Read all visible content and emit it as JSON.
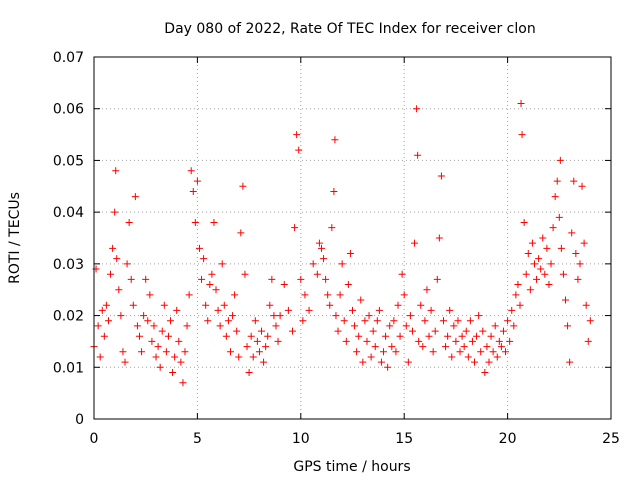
{
  "chart_data": {
    "type": "scatter",
    "title": "Day 080 of 2022, Rate Of TEC Index for receiver clon",
    "xlabel": "GPS time / hours",
    "ylabel": "ROTI / TECUs",
    "xlim": [
      0,
      25
    ],
    "ylim": [
      0,
      0.07
    ],
    "x_ticks": [
      0,
      5,
      10,
      15,
      20,
      25
    ],
    "x_tick_labels": [
      "0",
      "5",
      "10",
      "15",
      "20",
      "25"
    ],
    "y_ticks": [
      0,
      0.01,
      0.02,
      0.03,
      0.04,
      0.05,
      0.06,
      0.07
    ],
    "y_tick_labels": [
      "0",
      "0.01",
      "0.02",
      "0.03",
      "0.04",
      "0.05",
      "0.06",
      "0.07"
    ],
    "grid": true,
    "marker": "+",
    "color": "#ff0000",
    "series": [
      {
        "points": [
          [
            0.0,
            0.014
          ],
          [
            0.1,
            0.029
          ],
          [
            0.2,
            0.018
          ],
          [
            0.3,
            0.012
          ],
          [
            0.4,
            0.021
          ],
          [
            0.5,
            0.016
          ],
          [
            0.6,
            0.022
          ],
          [
            0.7,
            0.019
          ],
          [
            0.8,
            0.028
          ],
          [
            0.9,
            0.033
          ],
          [
            1.0,
            0.04
          ],
          [
            1.05,
            0.048
          ],
          [
            1.1,
            0.031
          ],
          [
            1.2,
            0.025
          ],
          [
            1.3,
            0.02
          ],
          [
            1.4,
            0.013
          ],
          [
            1.5,
            0.011
          ],
          [
            1.6,
            0.03
          ],
          [
            1.7,
            0.038
          ],
          [
            1.8,
            0.027
          ],
          [
            1.9,
            0.022
          ],
          [
            2.0,
            0.043
          ],
          [
            2.1,
            0.018
          ],
          [
            2.2,
            0.016
          ],
          [
            2.3,
            0.013
          ],
          [
            2.4,
            0.02
          ],
          [
            2.5,
            0.027
          ],
          [
            2.6,
            0.019
          ],
          [
            2.7,
            0.024
          ],
          [
            2.8,
            0.015
          ],
          [
            2.9,
            0.018
          ],
          [
            3.0,
            0.012
          ],
          [
            3.1,
            0.014
          ],
          [
            3.2,
            0.01
          ],
          [
            3.3,
            0.017
          ],
          [
            3.4,
            0.022
          ],
          [
            3.5,
            0.013
          ],
          [
            3.6,
            0.016
          ],
          [
            3.7,
            0.019
          ],
          [
            3.8,
            0.009
          ],
          [
            3.9,
            0.012
          ],
          [
            4.0,
            0.021
          ],
          [
            4.1,
            0.015
          ],
          [
            4.2,
            0.011
          ],
          [
            4.3,
            0.007
          ],
          [
            4.4,
            0.013
          ],
          [
            4.5,
            0.018
          ],
          [
            4.6,
            0.024
          ],
          [
            4.7,
            0.048
          ],
          [
            4.8,
            0.044
          ],
          [
            4.9,
            0.038
          ],
          [
            5.0,
            0.046
          ],
          [
            5.1,
            0.033
          ],
          [
            5.2,
            0.027
          ],
          [
            5.3,
            0.031
          ],
          [
            5.4,
            0.022
          ],
          [
            5.5,
            0.019
          ],
          [
            5.6,
            0.026
          ],
          [
            5.7,
            0.028
          ],
          [
            5.8,
            0.038
          ],
          [
            5.9,
            0.025
          ],
          [
            6.0,
            0.021
          ],
          [
            6.1,
            0.018
          ],
          [
            6.2,
            0.03
          ],
          [
            6.3,
            0.022
          ],
          [
            6.4,
            0.016
          ],
          [
            6.5,
            0.019
          ],
          [
            6.6,
            0.013
          ],
          [
            6.7,
            0.02
          ],
          [
            6.8,
            0.024
          ],
          [
            6.9,
            0.017
          ],
          [
            7.0,
            0.012
          ],
          [
            7.1,
            0.036
          ],
          [
            7.2,
            0.045
          ],
          [
            7.3,
            0.028
          ],
          [
            7.4,
            0.014
          ],
          [
            7.5,
            0.009
          ],
          [
            7.6,
            0.016
          ],
          [
            7.7,
            0.012
          ],
          [
            7.8,
            0.019
          ],
          [
            7.9,
            0.015
          ],
          [
            8.0,
            0.013
          ],
          [
            8.1,
            0.017
          ],
          [
            8.2,
            0.011
          ],
          [
            8.3,
            0.014
          ],
          [
            8.4,
            0.016
          ],
          [
            8.5,
            0.022
          ],
          [
            8.6,
            0.027
          ],
          [
            8.7,
            0.02
          ],
          [
            8.8,
            0.018
          ],
          [
            8.9,
            0.015
          ],
          [
            9.0,
            0.02
          ],
          [
            9.2,
            0.026
          ],
          [
            9.4,
            0.021
          ],
          [
            9.6,
            0.017
          ],
          [
            9.7,
            0.037
          ],
          [
            9.8,
            0.055
          ],
          [
            9.9,
            0.052
          ],
          [
            10.0,
            0.027
          ],
          [
            10.1,
            0.019
          ],
          [
            10.2,
            0.024
          ],
          [
            10.4,
            0.021
          ],
          [
            10.6,
            0.03
          ],
          [
            10.8,
            0.028
          ],
          [
            10.9,
            0.034
          ],
          [
            11.0,
            0.033
          ],
          [
            11.1,
            0.031
          ],
          [
            11.2,
            0.027
          ],
          [
            11.3,
            0.024
          ],
          [
            11.4,
            0.022
          ],
          [
            11.5,
            0.037
          ],
          [
            11.6,
            0.044
          ],
          [
            11.65,
            0.054
          ],
          [
            11.7,
            0.02
          ],
          [
            11.8,
            0.017
          ],
          [
            11.9,
            0.024
          ],
          [
            12.0,
            0.03
          ],
          [
            12.1,
            0.019
          ],
          [
            12.2,
            0.015
          ],
          [
            12.3,
            0.026
          ],
          [
            12.4,
            0.032
          ],
          [
            12.5,
            0.021
          ],
          [
            12.6,
            0.018
          ],
          [
            12.7,
            0.013
          ],
          [
            12.8,
            0.016
          ],
          [
            12.9,
            0.023
          ],
          [
            13.0,
            0.011
          ],
          [
            13.1,
            0.019
          ],
          [
            13.2,
            0.015
          ],
          [
            13.3,
            0.02
          ],
          [
            13.4,
            0.012
          ],
          [
            13.5,
            0.017
          ],
          [
            13.6,
            0.014
          ],
          [
            13.7,
            0.019
          ],
          [
            13.8,
            0.021
          ],
          [
            13.9,
            0.011
          ],
          [
            14.0,
            0.013
          ],
          [
            14.1,
            0.016
          ],
          [
            14.2,
            0.01
          ],
          [
            14.3,
            0.018
          ],
          [
            14.4,
            0.014
          ],
          [
            14.5,
            0.019
          ],
          [
            14.6,
            0.013
          ],
          [
            14.7,
            0.022
          ],
          [
            14.8,
            0.016
          ],
          [
            14.9,
            0.028
          ],
          [
            15.0,
            0.024
          ],
          [
            15.1,
            0.018
          ],
          [
            15.2,
            0.011
          ],
          [
            15.3,
            0.02
          ],
          [
            15.4,
            0.017
          ],
          [
            15.5,
            0.034
          ],
          [
            15.6,
            0.06
          ],
          [
            15.65,
            0.051
          ],
          [
            15.7,
            0.015
          ],
          [
            15.8,
            0.022
          ],
          [
            15.9,
            0.014
          ],
          [
            16.0,
            0.019
          ],
          [
            16.1,
            0.025
          ],
          [
            16.2,
            0.016
          ],
          [
            16.3,
            0.021
          ],
          [
            16.4,
            0.013
          ],
          [
            16.5,
            0.017
          ],
          [
            16.6,
            0.027
          ],
          [
            16.7,
            0.035
          ],
          [
            16.8,
            0.047
          ],
          [
            16.9,
            0.019
          ],
          [
            17.0,
            0.014
          ],
          [
            17.1,
            0.016
          ],
          [
            17.2,
            0.021
          ],
          [
            17.3,
            0.012
          ],
          [
            17.4,
            0.018
          ],
          [
            17.5,
            0.015
          ],
          [
            17.6,
            0.019
          ],
          [
            17.7,
            0.013
          ],
          [
            17.8,
            0.016
          ],
          [
            17.9,
            0.014
          ],
          [
            18.0,
            0.017
          ],
          [
            18.1,
            0.012
          ],
          [
            18.2,
            0.019
          ],
          [
            18.3,
            0.015
          ],
          [
            18.4,
            0.011
          ],
          [
            18.5,
            0.016
          ],
          [
            18.6,
            0.02
          ],
          [
            18.7,
            0.013
          ],
          [
            18.8,
            0.017
          ],
          [
            18.9,
            0.009
          ],
          [
            19.0,
            0.014
          ],
          [
            19.1,
            0.011
          ],
          [
            19.2,
            0.016
          ],
          [
            19.3,
            0.013
          ],
          [
            19.4,
            0.018
          ],
          [
            19.5,
            0.012
          ],
          [
            19.6,
            0.015
          ],
          [
            19.7,
            0.014
          ],
          [
            19.8,
            0.017
          ],
          [
            19.9,
            0.013
          ],
          [
            20.0,
            0.019
          ],
          [
            20.1,
            0.015
          ],
          [
            20.2,
            0.021
          ],
          [
            20.3,
            0.018
          ],
          [
            20.4,
            0.024
          ],
          [
            20.5,
            0.026
          ],
          [
            20.6,
            0.022
          ],
          [
            20.65,
            0.061
          ],
          [
            20.7,
            0.055
          ],
          [
            20.8,
            0.038
          ],
          [
            20.9,
            0.028
          ],
          [
            21.0,
            0.032
          ],
          [
            21.1,
            0.025
          ],
          [
            21.2,
            0.034
          ],
          [
            21.3,
            0.03
          ],
          [
            21.4,
            0.027
          ],
          [
            21.5,
            0.031
          ],
          [
            21.6,
            0.029
          ],
          [
            21.7,
            0.035
          ],
          [
            21.8,
            0.028
          ],
          [
            21.9,
            0.033
          ],
          [
            22.0,
            0.026
          ],
          [
            22.1,
            0.03
          ],
          [
            22.2,
            0.037
          ],
          [
            22.3,
            0.043
          ],
          [
            22.4,
            0.046
          ],
          [
            22.5,
            0.039
          ],
          [
            22.55,
            0.05
          ],
          [
            22.6,
            0.033
          ],
          [
            22.7,
            0.028
          ],
          [
            22.8,
            0.023
          ],
          [
            22.9,
            0.018
          ],
          [
            23.0,
            0.011
          ],
          [
            23.1,
            0.036
          ],
          [
            23.2,
            0.046
          ],
          [
            23.3,
            0.032
          ],
          [
            23.4,
            0.027
          ],
          [
            23.5,
            0.03
          ],
          [
            23.6,
            0.045
          ],
          [
            23.7,
            0.034
          ],
          [
            23.8,
            0.022
          ],
          [
            23.9,
            0.015
          ],
          [
            24.0,
            0.019
          ]
        ]
      }
    ]
  }
}
